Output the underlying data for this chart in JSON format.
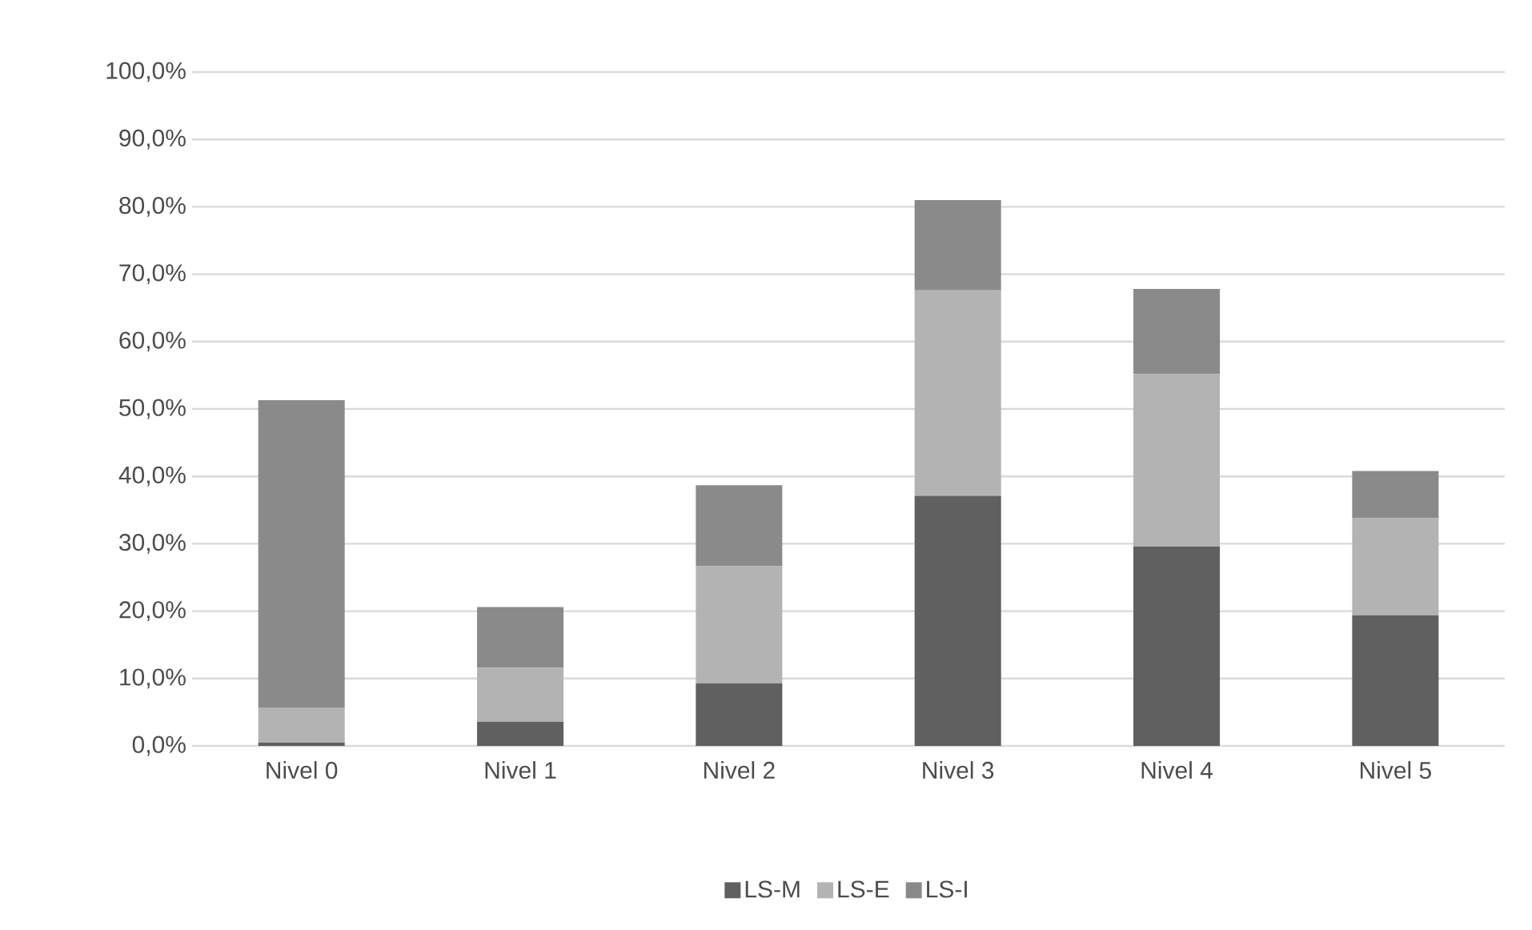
{
  "chart_data": {
    "type": "bar",
    "stacked": true,
    "categories": [
      "Nivel 0",
      "Nivel 1",
      "Nivel 2",
      "Nivel 3",
      "Nivel 4",
      "Nivel 5"
    ],
    "series": [
      {
        "name": "LS-M",
        "color": "#606060",
        "values": [
          0.5,
          3.6,
          9.3,
          37.1,
          29.6,
          19.4
        ]
      },
      {
        "name": "LS-E",
        "color": "#b3b3b3",
        "values": [
          5.2,
          8.0,
          17.4,
          30.5,
          25.6,
          14.4
        ]
      },
      {
        "name": "LS-I",
        "color": "#8a8a8a",
        "values": [
          45.6,
          9.0,
          12.0,
          13.4,
          12.6,
          7.0
        ]
      }
    ],
    "ylim": [
      0,
      100
    ],
    "yticks": [
      {
        "value": 0,
        "label": "0,0%"
      },
      {
        "value": 10,
        "label": "10,0%"
      },
      {
        "value": 20,
        "label": "20,0%"
      },
      {
        "value": 30,
        "label": "30,0%"
      },
      {
        "value": 40,
        "label": "40,0%"
      },
      {
        "value": 50,
        "label": "50,0%"
      },
      {
        "value": 60,
        "label": "60,0%"
      },
      {
        "value": 70,
        "label": "70,0%"
      },
      {
        "value": 80,
        "label": "80,0%"
      },
      {
        "value": 90,
        "label": "90,0%"
      },
      {
        "value": 100,
        "label": "100,0%"
      }
    ],
    "grid": "y",
    "legend": "bottom"
  }
}
